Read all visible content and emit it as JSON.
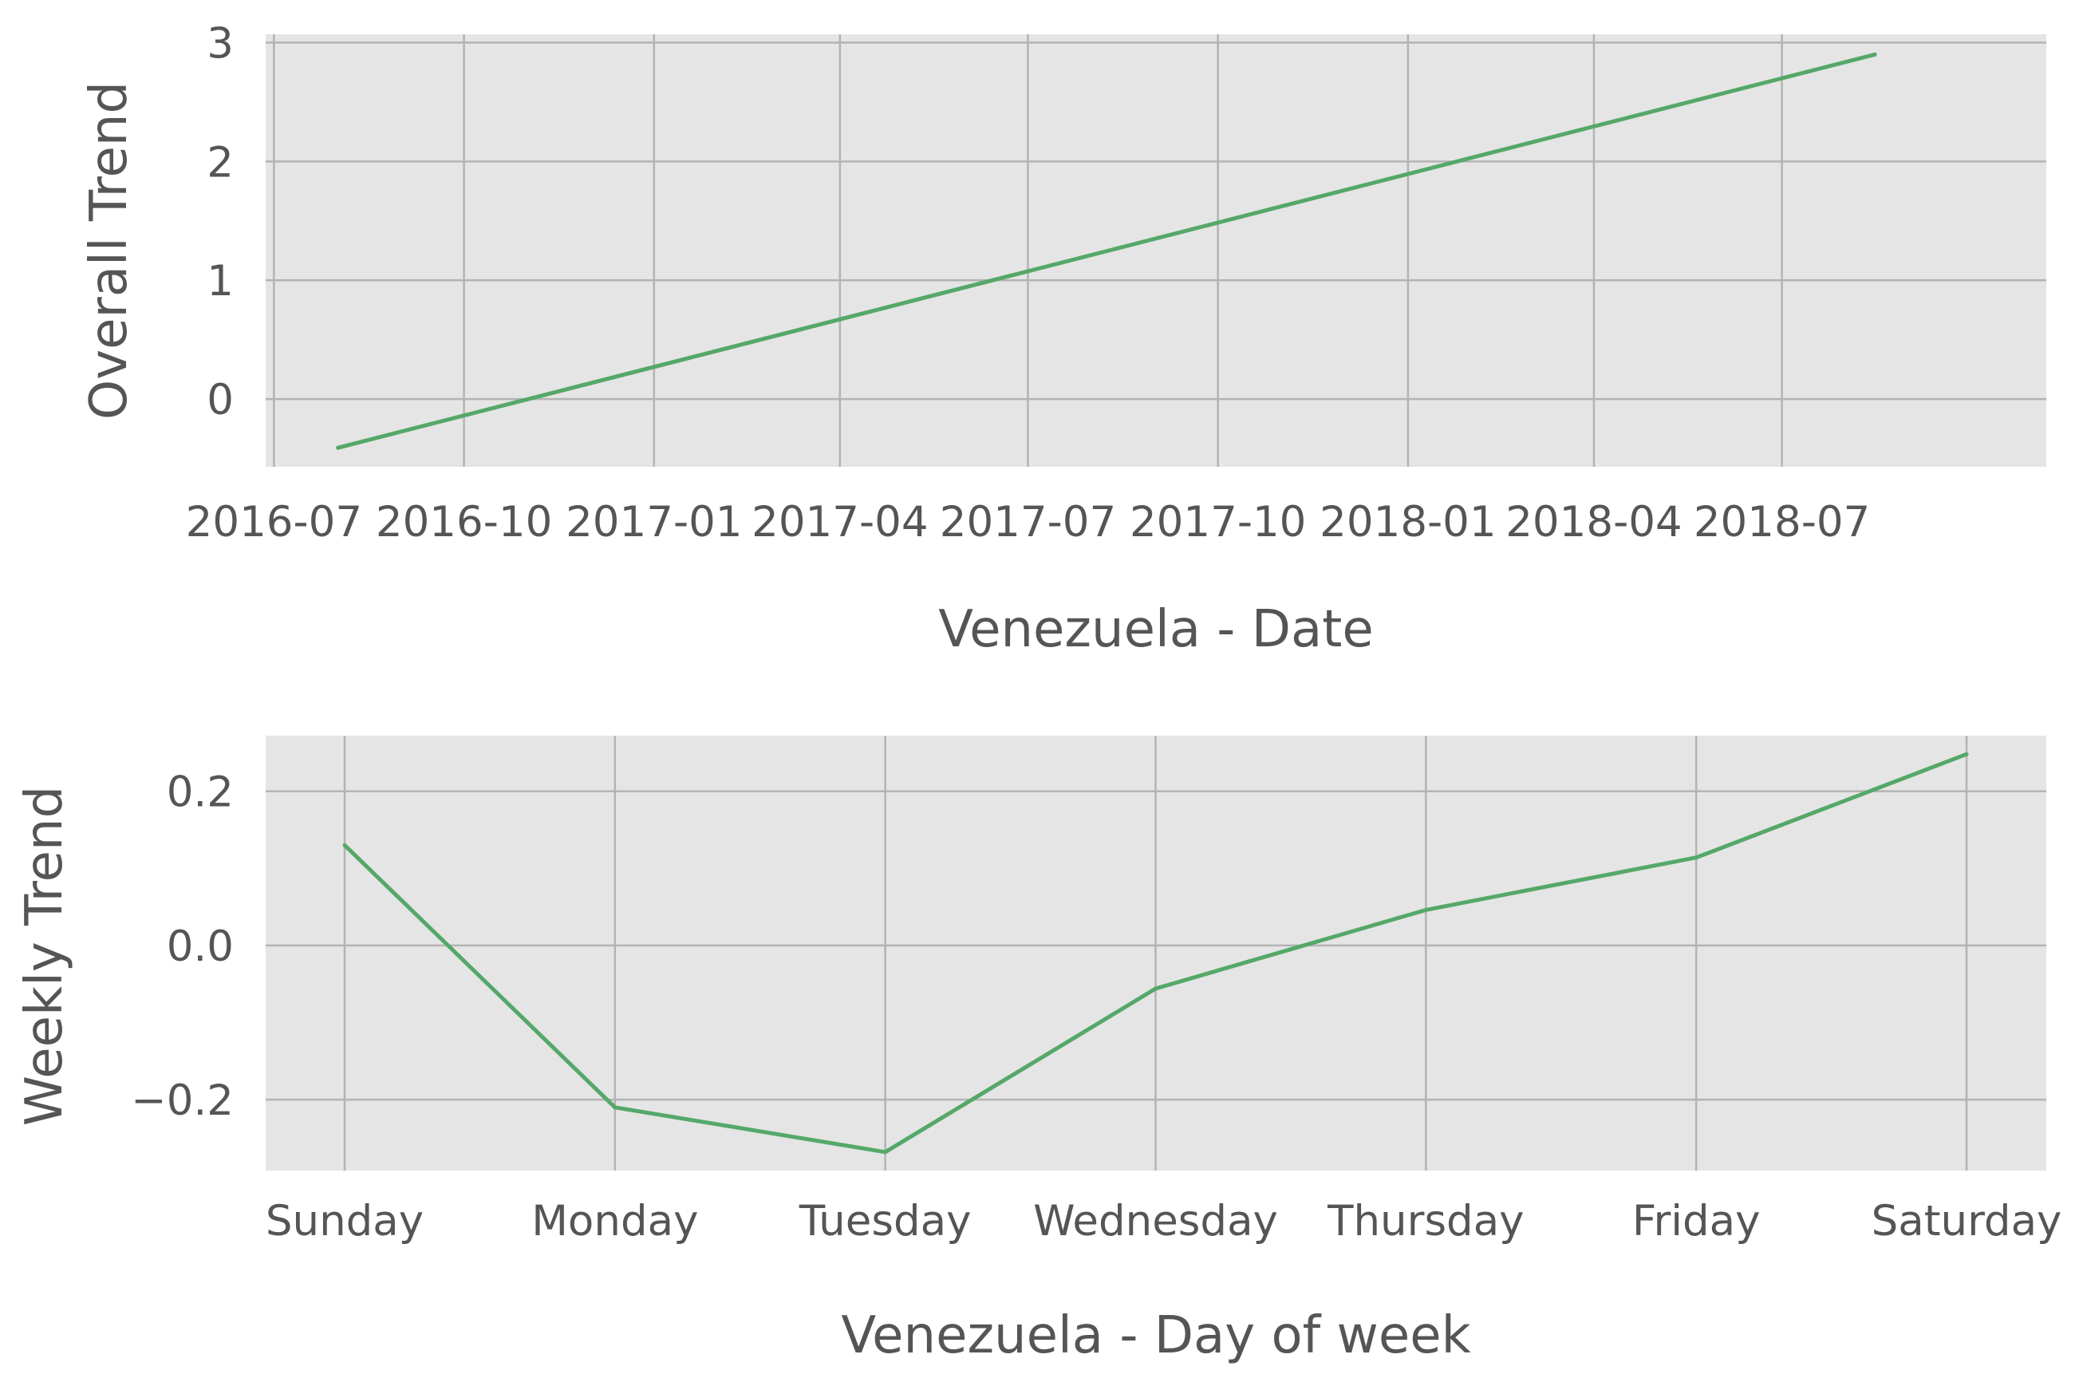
{
  "chart_data": [
    {
      "type": "line",
      "xlabel": "Venezuela - Date",
      "ylabel": "Overall Trend",
      "x_type": "date",
      "x_ticks": [
        "2016-07",
        "2016-10",
        "2017-01",
        "2017-04",
        "2017-07",
        "2017-10",
        "2018-01",
        "2018-04",
        "2018-07"
      ],
      "x_tick_dates": [
        "2016-07-01",
        "2016-10-01",
        "2017-01-01",
        "2017-04-01",
        "2017-07-01",
        "2017-10-01",
        "2018-01-01",
        "2018-04-01",
        "2018-07-01"
      ],
      "xlim": [
        "2016-06-27",
        "2018-11-06"
      ],
      "y_ticks": [
        0,
        1,
        2,
        3
      ],
      "y_tick_labels": [
        "0",
        "1",
        "2",
        "3"
      ],
      "ylim": [
        -0.57,
        3.07
      ],
      "grid": true,
      "series": [
        {
          "color": "#55a868",
          "x": [
            "2016-08-01",
            "2018-08-15"
          ],
          "y": [
            -0.41,
            2.9
          ]
        }
      ]
    },
    {
      "type": "line",
      "xlabel": "Venezuela - Day of week",
      "ylabel": "Weekly Trend",
      "categories": [
        "Sunday",
        "Monday",
        "Tuesday",
        "Wednesday",
        "Thursday",
        "Friday",
        "Saturday"
      ],
      "y_ticks": [
        -0.2,
        0.0,
        0.2
      ],
      "y_tick_labels": [
        "−0.2",
        "0.0",
        "0.2"
      ],
      "ylim": [
        -0.292,
        0.272
      ],
      "grid": true,
      "series": [
        {
          "color": "#55a868",
          "values": [
            0.13,
            -0.21,
            -0.268,
            -0.056,
            0.046,
            0.114,
            0.248
          ]
        }
      ]
    }
  ]
}
